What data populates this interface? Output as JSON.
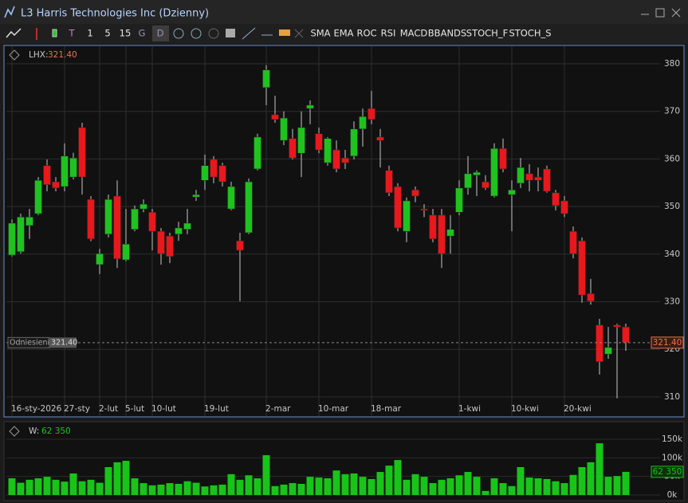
{
  "window": {
    "title": "L3 Harris Technologies Inc (Dzienny)",
    "toolbar": [
      "T",
      "1",
      "5",
      "15",
      "G",
      "D",
      "SMA",
      "EMA",
      "ROC",
      "RSI",
      "MACD",
      "BBANDS",
      "STOCH_F",
      "STOCH_S"
    ]
  },
  "chart_data": [
    {
      "type": "candlestick",
      "symbol": "LHX:",
      "reference_label": "Odniesienie",
      "last": {
        "value": 321.4,
        "label": "321.40"
      },
      "categories": [
        "16-sty-2026",
        null,
        null,
        null,
        null,
        null,
        "27-sty",
        null,
        null,
        null,
        "2-lut",
        null,
        null,
        "5-lut",
        null,
        null,
        "10-lut",
        null,
        null,
        null,
        null,
        null,
        "19-lut",
        null,
        null,
        null,
        null,
        null,
        null,
        "2-mar",
        null,
        null,
        null,
        null,
        null,
        "10-mar",
        null,
        null,
        null,
        null,
        null,
        "18-mar",
        null,
        null,
        null,
        null,
        null,
        null,
        null,
        null,
        null,
        "1-kwi",
        null,
        null,
        null,
        null,
        null,
        "10-kwi",
        null,
        null,
        null,
        null,
        null,
        "20-kwi",
        null,
        null,
        null,
        null,
        null,
        null,
        null
      ],
      "open": [
        339.8,
        340.5,
        346.0,
        348.5,
        358.6,
        355.2,
        354.2,
        356.2,
        366.6,
        351.5,
        337.8,
        344.2,
        352.2,
        338.8,
        345.2,
        349.5,
        348.8,
        344.8,
        343.8,
        344.2,
        345.2,
        352.0,
        355.5,
        359.9,
        358.6,
        349.5,
        342.8,
        344.5,
        357.9,
        375.0,
        369.3,
        363.9,
        364.3,
        361.2,
        370.6,
        365.3,
        359.2,
        361.9,
        360.2,
        360.6,
        366.3,
        370.6,
        364.6,
        357.6,
        354.2,
        344.8,
        353.5,
        349.5,
        348.2,
        348.2,
        343.8,
        348.8,
        353.9,
        356.6,
        355.2,
        352.2,
        362.2,
        352.5,
        354.9,
        356.9,
        356.2,
        357.9,
        352.9,
        351.2,
        344.8,
        342.8,
        331.7,
        325.1,
        319.0,
        325.1,
        324.7
      ],
      "high": [
        347.3,
        348.5,
        349.5,
        356.2,
        359.9,
        356.2,
        363.3,
        361.3,
        367.6,
        352.2,
        341.1,
        352.5,
        355.5,
        349.5,
        350.2,
        351.5,
        349.5,
        345.5,
        344.5,
        346.8,
        349.5,
        353.5,
        360.9,
        360.6,
        359.2,
        355.2,
        344.5,
        355.9,
        365.3,
        379.7,
        373.3,
        370.0,
        366.3,
        370.0,
        372.3,
        366.6,
        364.6,
        363.9,
        361.9,
        367.9,
        370.6,
        374.3,
        366.3,
        358.6,
        354.9,
        351.9,
        354.2,
        350.5,
        349.5,
        349.5,
        348.2,
        355.5,
        360.6,
        357.6,
        356.6,
        363.3,
        364.3,
        355.5,
        360.2,
        358.9,
        358.2,
        358.6,
        353.5,
        352.2,
        345.8,
        343.5,
        334.8,
        326.4,
        324.7,
        325.4,
        325.4
      ],
      "low": [
        339.5,
        340.1,
        343.2,
        348.2,
        353.2,
        353.2,
        353.2,
        355.7,
        352.5,
        342.7,
        335.8,
        343.5,
        337.1,
        338.5,
        344.8,
        348.8,
        340.8,
        337.8,
        338.1,
        342.8,
        344.2,
        351.2,
        353.5,
        354.9,
        354.2,
        349.2,
        330.1,
        344.2,
        357.6,
        371.3,
        367.6,
        362.9,
        359.9,
        356.2,
        367.3,
        361.2,
        358.6,
        357.2,
        357.9,
        359.9,
        362.6,
        367.3,
        358.2,
        352.2,
        344.8,
        342.5,
        350.9,
        347.8,
        342.5,
        337.1,
        340.1,
        348.2,
        352.5,
        352.2,
        353.5,
        351.9,
        357.2,
        344.8,
        353.9,
        353.2,
        353.2,
        352.9,
        349.2,
        347.8,
        339.1,
        329.8,
        329.4,
        314.7,
        318.0,
        309.7,
        319.7
      ],
      "close": [
        346.5,
        347.8,
        347.8,
        355.5,
        354.6,
        353.9,
        360.6,
        360.2,
        356.2,
        343.2,
        340.1,
        351.5,
        339.0,
        342.1,
        349.5,
        350.5,
        344.8,
        340.1,
        339.5,
        345.5,
        346.5,
        352.5,
        358.6,
        356.2,
        355.2,
        354.2,
        340.8,
        355.2,
        364.6,
        378.7,
        368.3,
        368.6,
        360.2,
        366.6,
        371.3,
        361.9,
        364.3,
        357.9,
        359.2,
        366.3,
        368.9,
        368.3,
        363.9,
        352.9,
        345.5,
        351.2,
        352.2,
        349.2,
        343.2,
        340.1,
        345.2,
        353.9,
        356.9,
        357.2,
        353.9,
        362.2,
        357.9,
        353.5,
        358.2,
        355.5,
        355.5,
        353.2,
        350.2,
        348.5,
        340.1,
        331.4,
        330.1,
        317.4,
        320.4,
        324.7,
        321.4
      ],
      "up_color": "#1fc21f",
      "down_color": "#e8181c",
      "last_color": "#e8734f",
      "ylim": [
        306.3,
        383.35
      ],
      "yticks": [
        310,
        320,
        330,
        340,
        350,
        360,
        370,
        380
      ],
      "grid": true
    },
    {
      "type": "bar",
      "name": "W:",
      "color": "#18c418",
      "last": {
        "value": 62350,
        "label": "62 350"
      },
      "values": [
        45000,
        33000,
        41000,
        45000,
        49000,
        41000,
        36000,
        58000,
        37000,
        41000,
        33000,
        75000,
        88000,
        92000,
        45000,
        32000,
        26000,
        28000,
        32000,
        30000,
        37000,
        33000,
        23000,
        26000,
        28000,
        56000,
        41000,
        53000,
        45000,
        107000,
        24000,
        28000,
        32000,
        30000,
        49000,
        47000,
        45000,
        66000,
        56000,
        58000,
        49000,
        43000,
        62000,
        79000,
        94000,
        41000,
        56000,
        49000,
        32000,
        41000,
        45000,
        53000,
        62000,
        49000,
        11000,
        45000,
        32000,
        24000,
        75000,
        47000,
        45000,
        43000,
        37000,
        32000,
        54000,
        75000,
        88000,
        139000,
        49000,
        51000,
        62350
      ],
      "ylim": [
        0,
        171400
      ],
      "yticks": [
        {
          "value": 0,
          "label": "0k"
        },
        {
          "value": 50000,
          "label": "50k"
        },
        {
          "value": 100000,
          "label": "100k"
        },
        {
          "value": 150000,
          "label": "150k"
        }
      ]
    }
  ]
}
